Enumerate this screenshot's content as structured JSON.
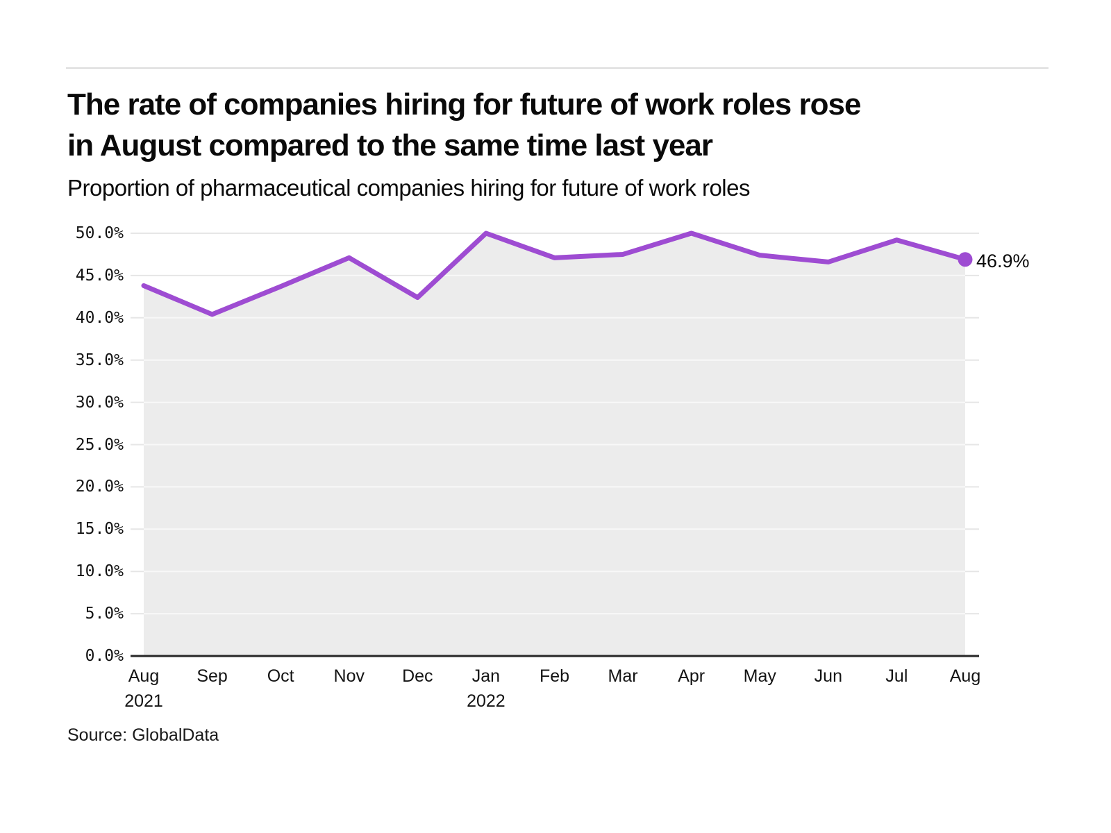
{
  "header": {
    "title_line1": "The rate of companies hiring for future of work roles rose",
    "title_line2": "in August compared to the same time last year",
    "subtitle": "Proportion of pharmaceutical companies hiring for future of work roles"
  },
  "footer": {
    "source": "Source: GlobalData"
  },
  "chart_data": {
    "type": "line",
    "title": "The rate of companies hiring for future of work roles rose in August compared to the same time last year",
    "subtitle": "Proportion of pharmaceutical companies hiring for future of work roles",
    "categories": [
      {
        "month": "Aug",
        "year": "2021"
      },
      {
        "month": "Sep",
        "year": ""
      },
      {
        "month": "Oct",
        "year": ""
      },
      {
        "month": "Nov",
        "year": ""
      },
      {
        "month": "Dec",
        "year": ""
      },
      {
        "month": "Jan",
        "year": "2022"
      },
      {
        "month": "Feb",
        "year": ""
      },
      {
        "month": "Mar",
        "year": ""
      },
      {
        "month": "Apr",
        "year": ""
      },
      {
        "month": "May",
        "year": ""
      },
      {
        "month": "Jun",
        "year": ""
      },
      {
        "month": "Jul",
        "year": ""
      },
      {
        "month": "Aug",
        "year": ""
      }
    ],
    "series": [
      {
        "name": "Proportion of pharmaceutical companies hiring for future of work roles",
        "values": [
          43.8,
          40.4,
          43.7,
          47.1,
          42.4,
          50.0,
          47.1,
          47.5,
          50.0,
          47.4,
          46.6,
          49.2,
          46.9
        ]
      }
    ],
    "end_label": "46.9%",
    "ylim": [
      0,
      50
    ],
    "ytick_step": 5,
    "ytick_labels": [
      "0.0%",
      "5.0%",
      "10.0%",
      "15.0%",
      "20.0%",
      "25.0%",
      "30.0%",
      "35.0%",
      "40.0%",
      "45.0%",
      "50.0%"
    ],
    "grid": true,
    "legend": "none",
    "colors": {
      "line": "#9e4cd2",
      "dot": "#9e4cd2",
      "area_fill": "#ececec",
      "gridline": "#e6e6e6",
      "gridline_over_area": "#f8f8f8",
      "axis_line": "#262626",
      "text": "#141414",
      "rule": "#dcdcdc"
    }
  }
}
